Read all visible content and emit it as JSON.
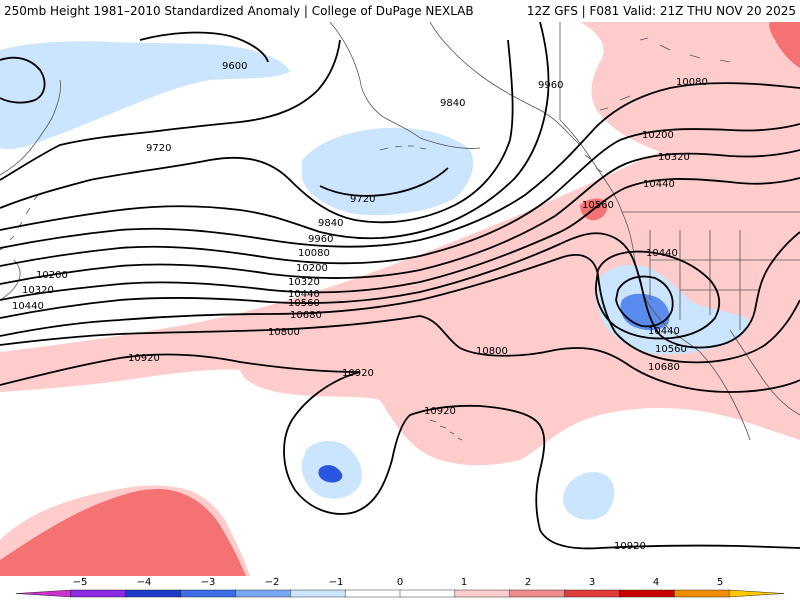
{
  "header": {
    "title_left": "250mb Height 1981–2010 Standardized Anomaly | College of DuPage NEXLAB",
    "title_right": "12Z GFS | F081 Valid: 21Z THU NOV 20 2025"
  },
  "colors": {
    "pos1": "#ffcccc",
    "pos2": "#f57272",
    "pos3": "#e03030",
    "neg1": "#cce5ff",
    "neg2": "#5a8cf0",
    "neg3": "#2a55e0",
    "coast": "#555555",
    "contour": "#000000"
  },
  "contour_labels": [
    {
      "id": "9600",
      "text": "9600"
    },
    {
      "id": "9720a",
      "text": "9720"
    },
    {
      "id": "9720b",
      "text": "9720"
    },
    {
      "id": "9840a",
      "text": "9840"
    },
    {
      "id": "9840b",
      "text": "9840"
    },
    {
      "id": "9960a",
      "text": "9960"
    },
    {
      "id": "9960b",
      "text": "9960"
    },
    {
      "id": "10080a",
      "text": "10080"
    },
    {
      "id": "10080b",
      "text": "10080"
    },
    {
      "id": "10200a",
      "text": "10200"
    },
    {
      "id": "10200b",
      "text": "10200"
    },
    {
      "id": "10200c",
      "text": "10200"
    },
    {
      "id": "10320a",
      "text": "10320"
    },
    {
      "id": "10320b",
      "text": "10320"
    },
    {
      "id": "10320c",
      "text": "10320"
    },
    {
      "id": "10440a",
      "text": "10440"
    },
    {
      "id": "10440b",
      "text": "10440"
    },
    {
      "id": "10440c",
      "text": "10440"
    },
    {
      "id": "10440d",
      "text": "10440"
    },
    {
      "id": "10440e",
      "text": "10440"
    },
    {
      "id": "10560a",
      "text": "10560"
    },
    {
      "id": "10560b",
      "text": "10560"
    },
    {
      "id": "10560c",
      "text": "10560"
    },
    {
      "id": "10680a",
      "text": "10680"
    },
    {
      "id": "10680b",
      "text": "10680"
    },
    {
      "id": "10800a",
      "text": "10800"
    },
    {
      "id": "10800b",
      "text": "10800"
    },
    {
      "id": "10920a",
      "text": "10920"
    },
    {
      "id": "10920b",
      "text": "10920"
    },
    {
      "id": "10920c",
      "text": "10920"
    },
    {
      "id": "10920d",
      "text": "10920"
    }
  ],
  "legend": {
    "labels": [
      "−5",
      "−4",
      "−3",
      "−2",
      "−1",
      "0",
      "1",
      "2",
      "3",
      "4",
      "5"
    ],
    "colors": [
      "#cc33cc",
      "#8a2be2",
      "#1e3cc8",
      "#3c6ee6",
      "#78a8f5",
      "#cce5ff",
      "#ffffff",
      "#ffffff",
      "#ffcccc",
      "#f08c8c",
      "#e03c3c",
      "#c80000",
      "#f08c00",
      "#ffc800"
    ]
  }
}
